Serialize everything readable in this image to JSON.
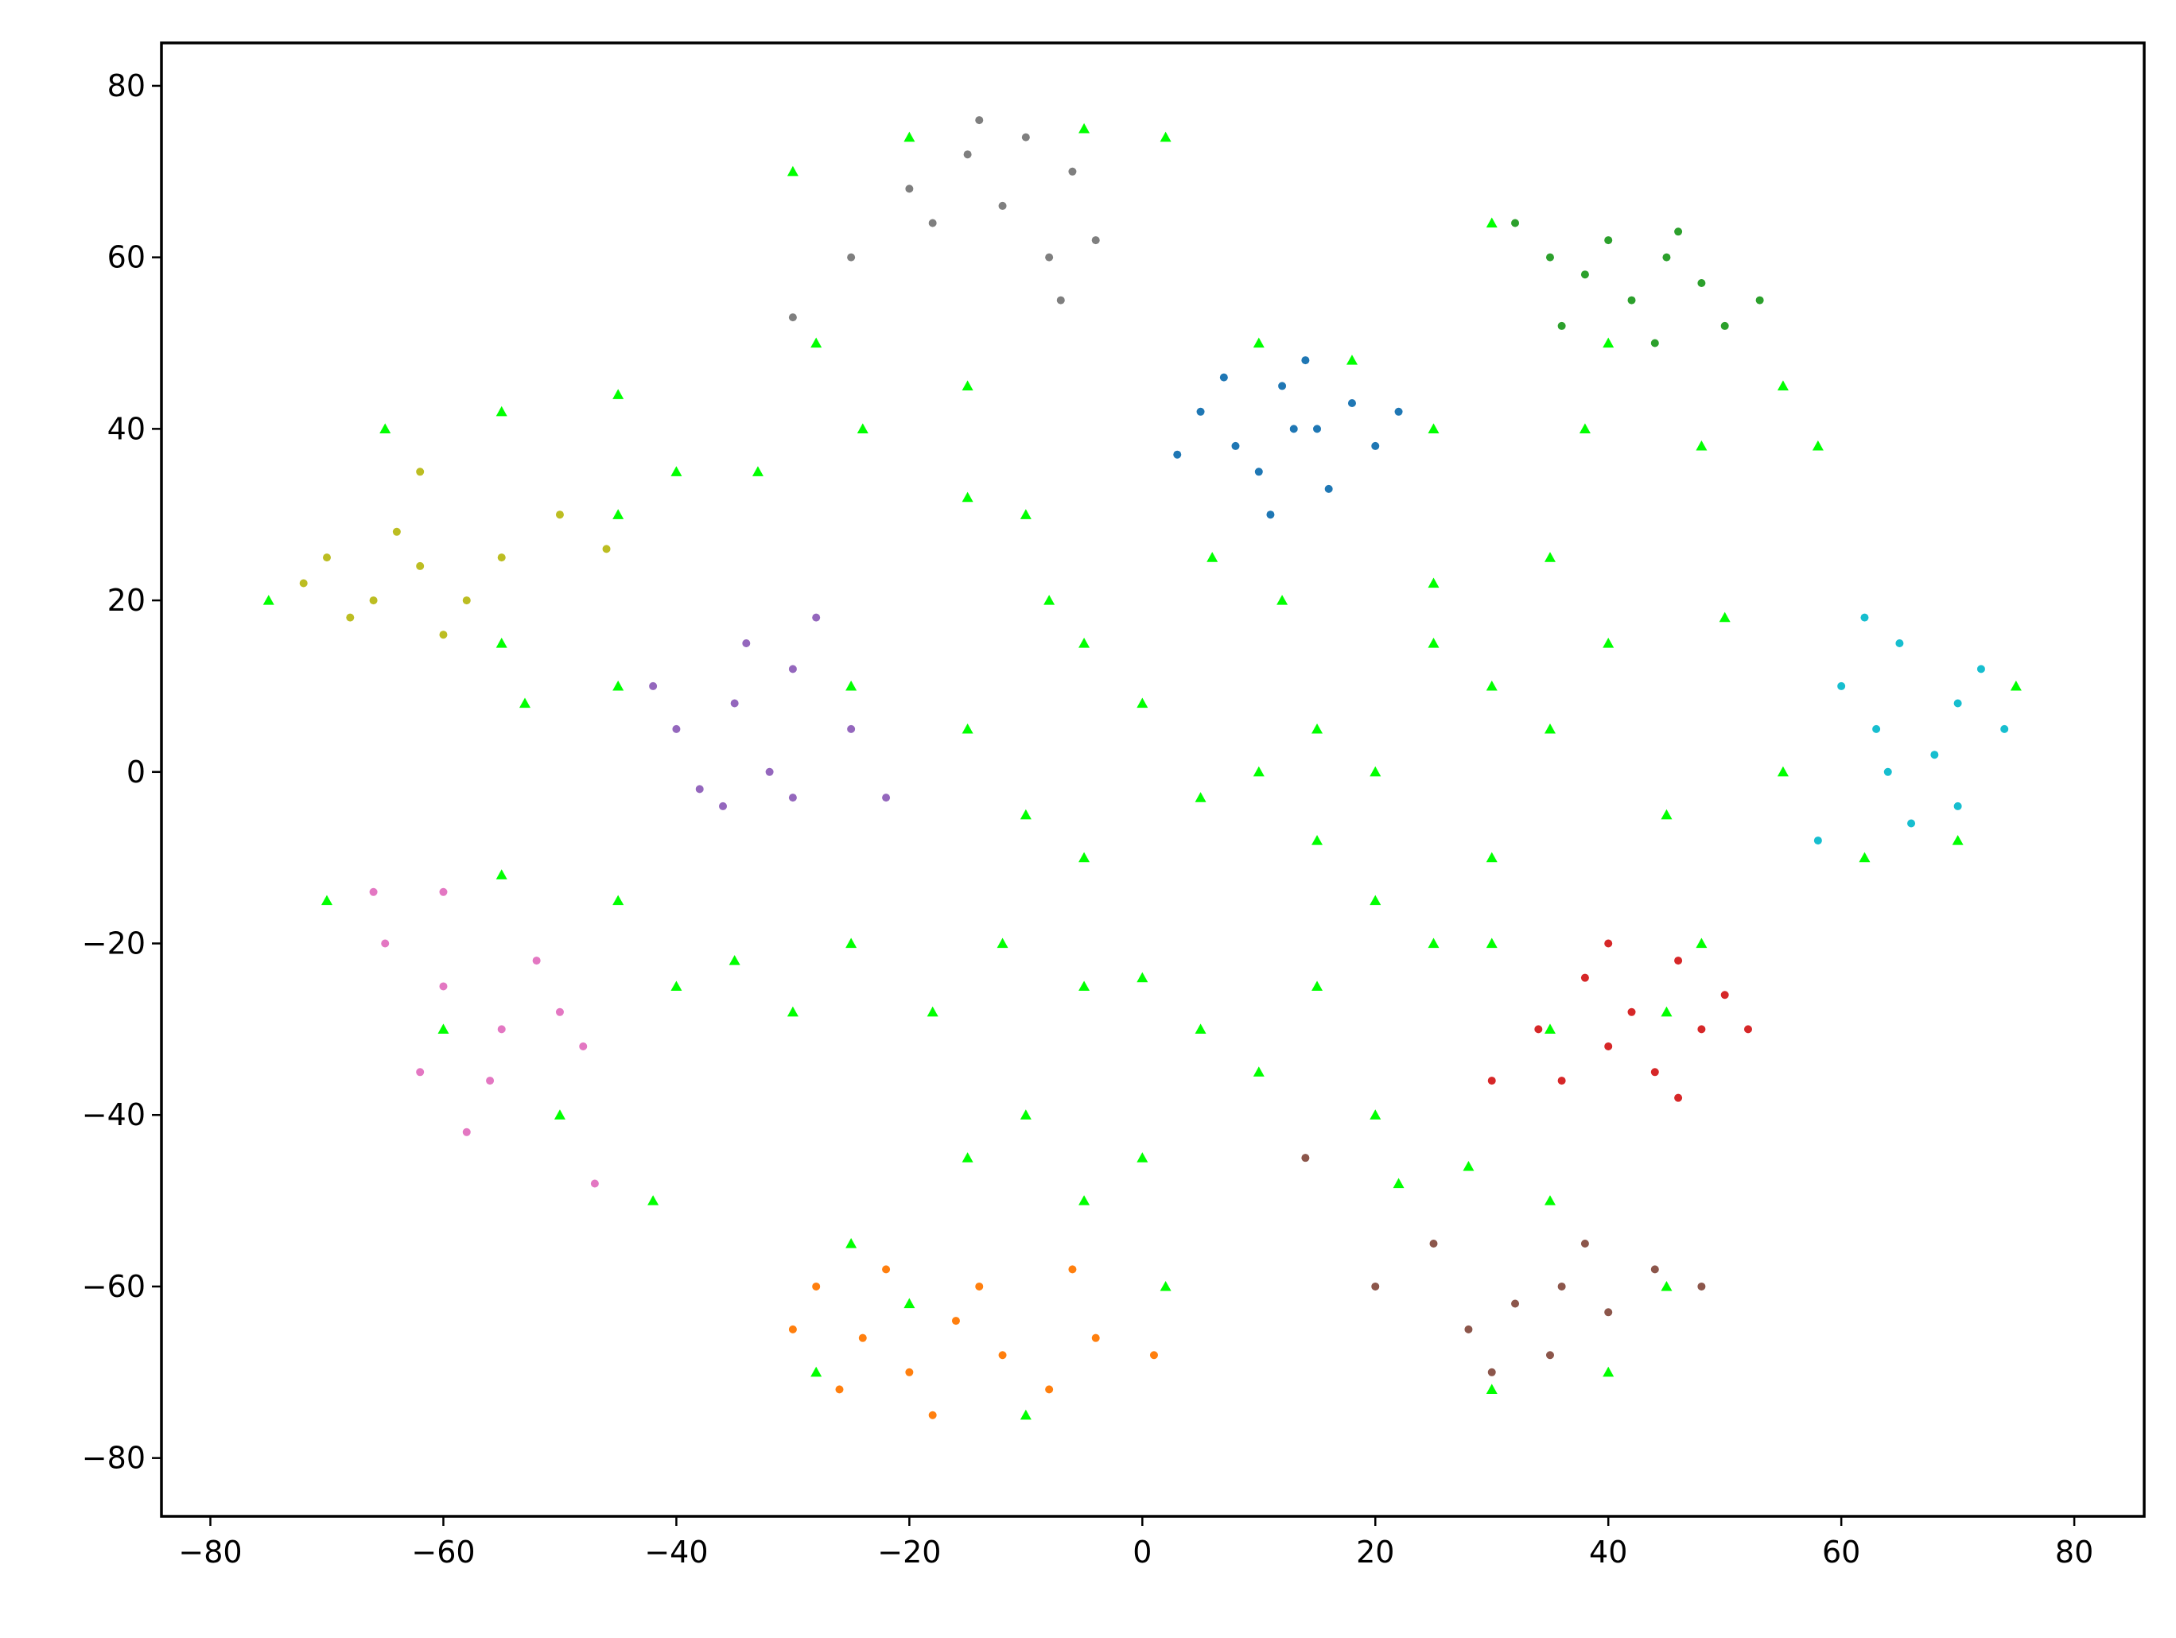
{
  "chart_data": {
    "type": "scatter",
    "xlim": [
      -84.2,
      86.0
    ],
    "ylim": [
      -86.8,
      85.0
    ],
    "xticks": [
      {
        "value": -80,
        "label": "−80"
      },
      {
        "value": -60,
        "label": "−60"
      },
      {
        "value": -40,
        "label": "−40"
      },
      {
        "value": -20,
        "label": "−20"
      },
      0,
      20,
      40,
      60,
      80
    ],
    "yticks": [
      {
        "value": -80,
        "label": "−80"
      },
      {
        "value": -60,
        "label": "−60"
      },
      {
        "value": -40,
        "label": "−40"
      },
      {
        "value": -20,
        "label": "−20"
      },
      0,
      20,
      40,
      60,
      80
    ],
    "grid": false,
    "series": [
      {
        "color": "#1f77b4",
        "marker": "circle",
        "x": [
          5,
          8,
          12,
          15,
          18,
          10,
          14,
          20,
          3,
          16,
          7,
          22,
          11,
          13
        ],
        "values": [
          42,
          38,
          45,
          40,
          43,
          35,
          48,
          38,
          37,
          33,
          46,
          42,
          30,
          40
        ]
      },
      {
        "color": "#ff7f0e",
        "marker": "circle",
        "x": [
          -28,
          -24,
          -20,
          -16,
          -22,
          -26,
          -12,
          -8,
          -4,
          1,
          -18,
          -30,
          -14,
          -6
        ],
        "values": [
          -60,
          -66,
          -70,
          -64,
          -58,
          -72,
          -68,
          -72,
          -66,
          -68,
          -75,
          -65,
          -60,
          -58
        ]
      },
      {
        "color": "#2ca02c",
        "marker": "circle",
        "x": [
          35,
          40,
          45,
          48,
          42,
          38,
          50,
          32,
          46,
          53,
          44,
          36
        ],
        "values": [
          60,
          62,
          60,
          57,
          55,
          58,
          52,
          64,
          63,
          55,
          50,
          52
        ]
      },
      {
        "color": "#d62728",
        "marker": "circle",
        "x": [
          38,
          42,
          46,
          48,
          44,
          40,
          36,
          50,
          52,
          40,
          34,
          46,
          30
        ],
        "values": [
          -24,
          -28,
          -22,
          -30,
          -35,
          -32,
          -36,
          -26,
          -30,
          -20,
          -30,
          -38,
          -36
        ]
      },
      {
        "color": "#9467bd",
        "marker": "circle",
        "x": [
          -40,
          -35,
          -30,
          -38,
          -32,
          -28,
          -42,
          -36,
          -25,
          -30,
          -34,
          -22
        ],
        "values": [
          5,
          8,
          12,
          -2,
          0,
          18,
          10,
          -4,
          5,
          -3,
          15,
          -3
        ]
      },
      {
        "color": "#8c564b",
        "marker": "circle",
        "x": [
          28,
          32,
          36,
          40,
          35,
          30,
          38,
          44,
          48,
          25,
          14,
          20
        ],
        "values": [
          -65,
          -62,
          -60,
          -63,
          -68,
          -70,
          -55,
          -58,
          -60,
          -55,
          -45,
          -60
        ]
      },
      {
        "color": "#e377c2",
        "marker": "circle",
        "x": [
          -65,
          -60,
          -55,
          -50,
          -62,
          -56,
          -48,
          -66,
          -52,
          -58,
          -47,
          -60
        ],
        "values": [
          -20,
          -25,
          -30,
          -28,
          -35,
          -36,
          -32,
          -14,
          -22,
          -42,
          -48,
          -14
        ]
      },
      {
        "color": "#7f7f7f",
        "marker": "circle",
        "x": [
          -20,
          -15,
          -10,
          -6,
          -12,
          -8,
          -4,
          -18,
          -25,
          -14,
          -7,
          -30
        ],
        "values": [
          68,
          72,
          74,
          70,
          66,
          60,
          62,
          64,
          60,
          76,
          55,
          53
        ]
      },
      {
        "color": "#bcbd22",
        "marker": "circle",
        "x": [
          -70,
          -66,
          -62,
          -58,
          -64,
          -68,
          -60,
          -55,
          -72,
          -62,
          -50,
          -46
        ],
        "values": [
          25,
          20,
          24,
          20,
          28,
          18,
          16,
          25,
          22,
          35,
          30,
          26
        ]
      },
      {
        "color": "#17becf",
        "marker": "circle",
        "x": [
          60,
          65,
          70,
          68,
          72,
          64,
          66,
          74,
          62,
          58,
          70,
          63
        ],
        "values": [
          10,
          15,
          8,
          2,
          12,
          0,
          -6,
          5,
          18,
          -8,
          -4,
          5
        ]
      },
      {
        "color": "#00ff00",
        "marker": "triangle",
        "x": [
          -75,
          -65,
          -55,
          -45,
          -40,
          -33,
          -55,
          -53,
          -45,
          -30,
          -20,
          -5,
          2,
          -28,
          -24,
          -15,
          -10,
          -15,
          -8,
          -5,
          10,
          18,
          25,
          6,
          12,
          25,
          35,
          30,
          15,
          20,
          30,
          40,
          55,
          58,
          48,
          38,
          25,
          35,
          40,
          50,
          55,
          62,
          75,
          70,
          45,
          -45,
          -25,
          -15,
          -10,
          0,
          5,
          10,
          15,
          -5,
          -70,
          -55,
          -45,
          -40,
          -60,
          -50,
          -42,
          -35,
          -30,
          -25,
          -18,
          -12,
          -5,
          0,
          -15,
          -10,
          -5,
          0,
          2,
          -25,
          -20,
          -10,
          -28,
          5,
          10,
          15,
          20,
          25,
          30,
          20,
          22,
          28,
          35,
          40,
          30,
          45,
          30,
          35,
          45,
          48
        ],
        "values": [
          20,
          40,
          42,
          44,
          35,
          35,
          15,
          8,
          30,
          70,
          74,
          75,
          74,
          50,
          40,
          45,
          30,
          32,
          20,
          15,
          50,
          48,
          40,
          25,
          20,
          22,
          25,
          10,
          5,
          0,
          64,
          50,
          45,
          38,
          38,
          40,
          15,
          5,
          15,
          18,
          0,
          -10,
          10,
          -8,
          -5,
          10,
          10,
          5,
          -5,
          8,
          -3,
          0,
          -8,
          -10,
          -15,
          -12,
          -15,
          -25,
          -30,
          -40,
          -50,
          -22,
          -28,
          -20,
          -28,
          -20,
          -25,
          -24,
          -45,
          -40,
          -50,
          -45,
          -60,
          -55,
          -62,
          -75,
          -70,
          -30,
          -35,
          -25,
          -15,
          -20,
          -10,
          -40,
          -48,
          -46,
          -50,
          -70,
          -72,
          -60,
          -20,
          -30,
          -28,
          -20
        ]
      }
    ]
  }
}
